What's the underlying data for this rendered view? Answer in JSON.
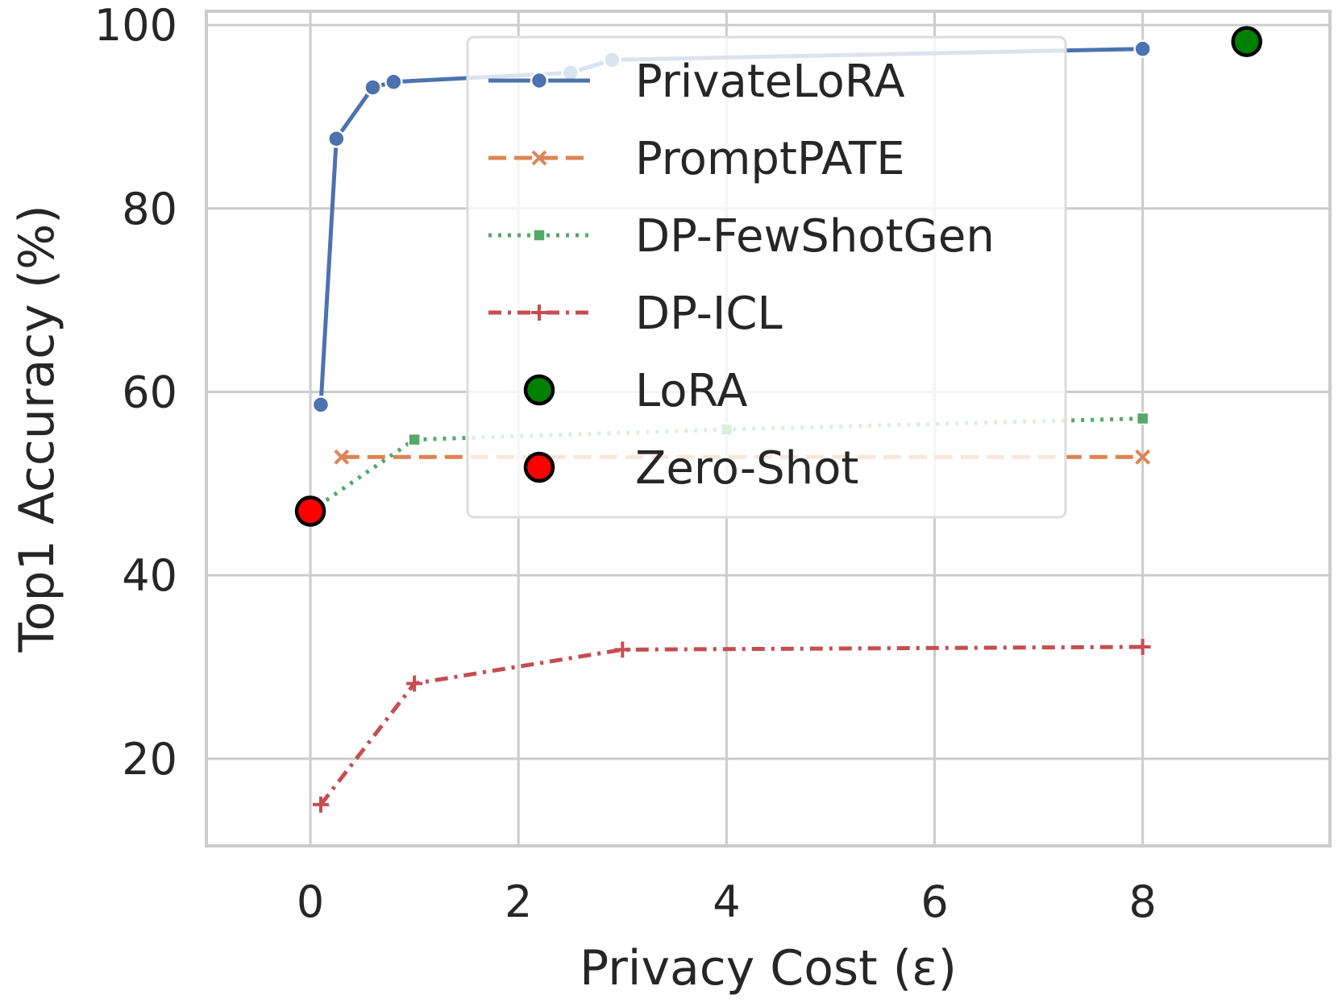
{
  "chart_data": {
    "type": "line",
    "xlabel": "Privacy Cost (ε)",
    "ylabel": "Top1 Accuracy (%)",
    "xlim": [
      -1.0,
      9.8
    ],
    "ylim": [
      10.5,
      101.5
    ],
    "x_ticks": [
      0,
      2,
      4,
      6,
      8
    ],
    "y_ticks": [
      20,
      40,
      60,
      80,
      100
    ],
    "grid": true,
    "legend_position": "upper-center",
    "series": [
      {
        "name": "PrivateLoRA",
        "kind": "line",
        "color": "#4c72b0",
        "marker": "circle",
        "dash": "solid",
        "x": [
          0.1,
          0.25,
          0.6,
          0.8,
          2.5,
          2.9,
          8.0
        ],
        "y": [
          58.6,
          87.6,
          93.2,
          93.8,
          94.8,
          96.2,
          97.4
        ]
      },
      {
        "name": "PromptPATE",
        "kind": "line",
        "color": "#dd8452",
        "marker": "x",
        "dash": "dashed",
        "x": [
          0.3,
          8.0
        ],
        "y": [
          52.9,
          52.9
        ]
      },
      {
        "name": "DP-FewShotGen",
        "kind": "line",
        "color": "#55a868",
        "marker": "square",
        "dash": "dotted",
        "x": [
          0.0,
          1.0,
          4.0,
          8.0
        ],
        "y": [
          47.0,
          54.8,
          55.9,
          57.1
        ]
      },
      {
        "name": "DP-ICL",
        "kind": "line",
        "color": "#c44e52",
        "marker": "plus",
        "dash": "dashdot",
        "x": [
          0.1,
          1.0,
          3.0,
          8.0
        ],
        "y": [
          15.0,
          28.2,
          31.9,
          32.2
        ]
      },
      {
        "name": "LoRA",
        "kind": "point",
        "color": "#008000",
        "marker": "big-circle",
        "x": [
          9.0
        ],
        "y": [
          98.2
        ]
      },
      {
        "name": "Zero-Shot",
        "kind": "point",
        "color": "#ff0000",
        "marker": "big-circle",
        "x": [
          0.0
        ],
        "y": [
          47.0
        ]
      }
    ]
  }
}
